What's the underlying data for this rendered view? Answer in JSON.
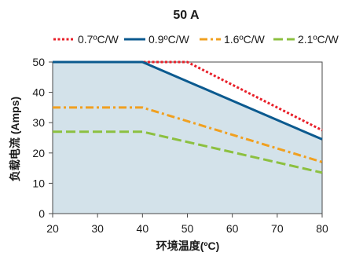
{
  "chart_data": {
    "type": "line",
    "title": "50 A",
    "xlabel": "环境温度(ºC)",
    "ylabel": "负载电流 (Amps)",
    "xlim": [
      20,
      80
    ],
    "ylim": [
      0,
      50
    ],
    "xticks": [
      "20",
      "30",
      "40",
      "50",
      "60",
      "70",
      "80"
    ],
    "yticks": [
      "0",
      "10",
      "20",
      "30",
      "40",
      "50"
    ],
    "legend_position": "top",
    "shaded_area_under": "0.9ºC/W",
    "shade_color": "#d3e2ea",
    "series": [
      {
        "name": "0.7ºC/W",
        "color": "#e8202a",
        "dash": "dotted",
        "x": [
          20,
          40,
          50,
          80
        ],
        "y": [
          50,
          50,
          50,
          27.5
        ]
      },
      {
        "name": "0.9ºC/W",
        "color": "#0b5a8f",
        "dash": "solid",
        "x": [
          20,
          40,
          80
        ],
        "y": [
          50,
          50,
          24.5
        ]
      },
      {
        "name": "1.6ºC/W",
        "color": "#f0a020",
        "dash": "dashdot",
        "x": [
          20,
          40,
          80
        ],
        "y": [
          35,
          35,
          17
        ]
      },
      {
        "name": "2.1ºC/W",
        "color": "#8cc040",
        "dash": "dashed",
        "x": [
          20,
          40,
          80
        ],
        "y": [
          27,
          27,
          13.5
        ]
      }
    ]
  }
}
